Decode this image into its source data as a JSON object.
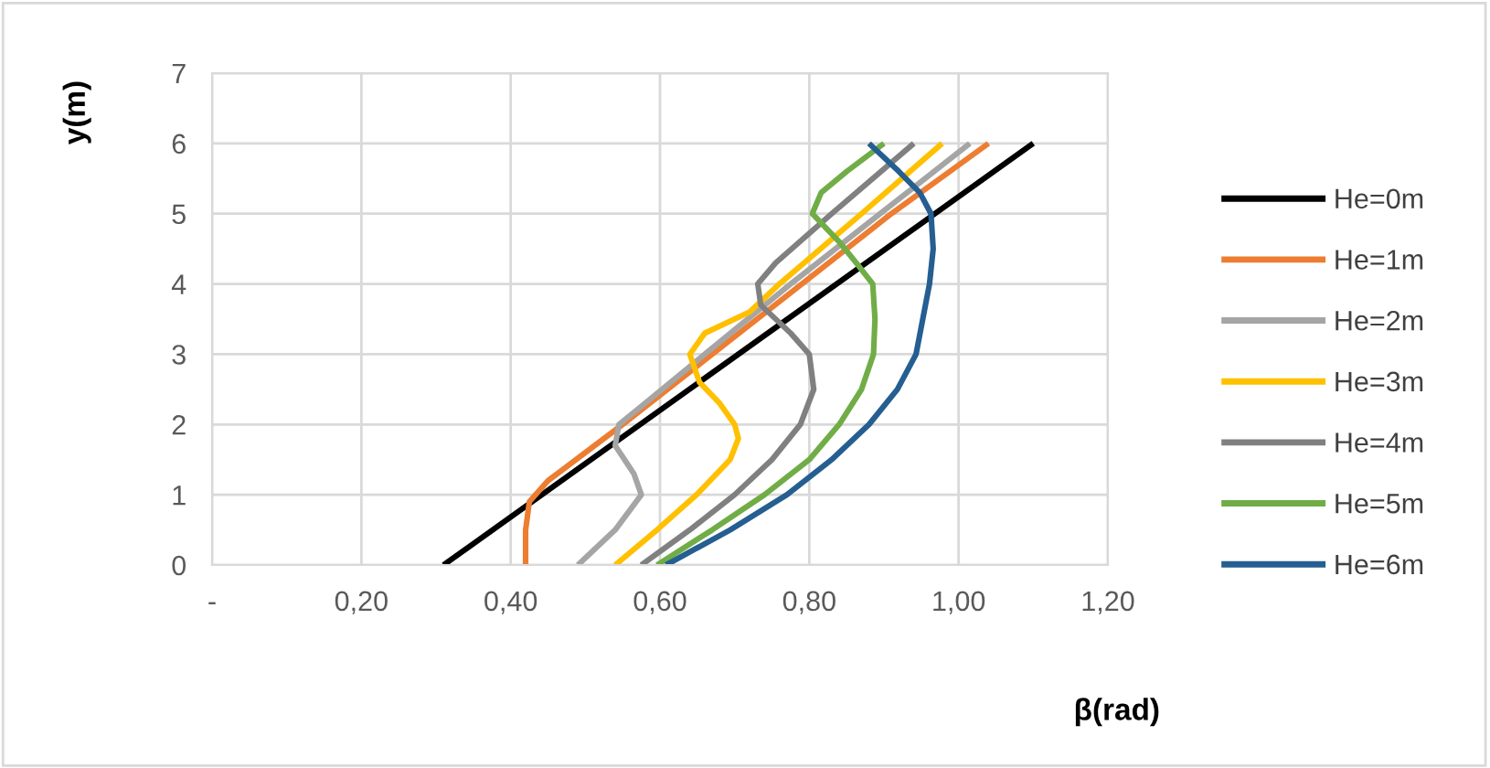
{
  "chart_data": {
    "type": "line",
    "xlabel": "β(rad)",
    "ylabel": "y(m)",
    "xlim": [
      0,
      1.2
    ],
    "ylim": [
      0,
      7
    ],
    "xticks": [
      {
        "value": 0,
        "label": "-"
      },
      {
        "value": 0.2,
        "label": "0,20"
      },
      {
        "value": 0.4,
        "label": "0,40"
      },
      {
        "value": 0.6,
        "label": "0,60"
      },
      {
        "value": 0.8,
        "label": "0,80"
      },
      {
        "value": 1.0,
        "label": "1,00"
      },
      {
        "value": 1.2,
        "label": "1,20"
      }
    ],
    "yticks": [
      0,
      1,
      2,
      3,
      4,
      5,
      6,
      7
    ],
    "grid": true,
    "legend": "right",
    "marker": "none",
    "line_style": "solid",
    "series": [
      {
        "name": "He=0m",
        "color": "#000000",
        "x": [
          0.31,
          1.1
        ],
        "values": [
          0,
          6
        ]
      },
      {
        "name": "He=1m",
        "color": "#ed7d31",
        "x": [
          0.42,
          0.42,
          0.425,
          0.45,
          0.5,
          0.55,
          0.67,
          0.79,
          0.91,
          1.04
        ],
        "values": [
          0,
          0.5,
          0.9,
          1.2,
          1.6,
          2,
          3,
          4,
          5,
          6
        ]
      },
      {
        "name": "He=2m",
        "color": "#a5a5a5",
        "x": [
          0.49,
          0.54,
          0.575,
          0.565,
          0.54,
          0.545,
          0.58,
          0.66,
          0.775,
          0.895,
          1.015
        ],
        "values": [
          0,
          0.5,
          1,
          1.3,
          1.7,
          2,
          2.3,
          3,
          4,
          5,
          6
        ]
      },
      {
        "name": "He=3m",
        "color": "#ffc000",
        "x": [
          0.54,
          0.596,
          0.649,
          0.694,
          0.705,
          0.7,
          0.68,
          0.653,
          0.64,
          0.66,
          0.72,
          0.76,
          0.87,
          0.978
        ],
        "values": [
          0,
          0.5,
          1,
          1.5,
          1.8,
          2,
          2.3,
          2.6,
          3,
          3.3,
          3.6,
          4,
          5,
          6
        ]
      },
      {
        "name": "He=4m",
        "color": "#808080",
        "x": [
          0.575,
          0.64,
          0.7,
          0.75,
          0.788,
          0.806,
          0.8,
          0.775,
          0.735,
          0.731,
          0.755,
          0.83,
          0.94
        ],
        "values": [
          0,
          0.5,
          1,
          1.5,
          2,
          2.5,
          3,
          3.3,
          3.7,
          4,
          4.3,
          5,
          6
        ]
      },
      {
        "name": "He=5m",
        "color": "#70ad47",
        "x": [
          0.596,
          0.67,
          0.74,
          0.8,
          0.84,
          0.87,
          0.886,
          0.888,
          0.885,
          0.863,
          0.84,
          0.804,
          0.816,
          0.85,
          0.9
        ],
        "values": [
          0,
          0.5,
          1,
          1.5,
          2,
          2.5,
          3,
          3.5,
          4,
          4.3,
          4.6,
          5,
          5.3,
          5.6,
          6
        ]
      },
      {
        "name": "He=6m",
        "color": "#255e91",
        "x": [
          0.608,
          0.694,
          0.77,
          0.83,
          0.88,
          0.918,
          0.943,
          0.961,
          0.966,
          0.963,
          0.948,
          0.92,
          0.88
        ],
        "values": [
          0,
          0.5,
          1,
          1.5,
          2,
          2.5,
          3,
          4,
          4.5,
          5,
          5.3,
          5.6,
          6
        ]
      }
    ]
  }
}
